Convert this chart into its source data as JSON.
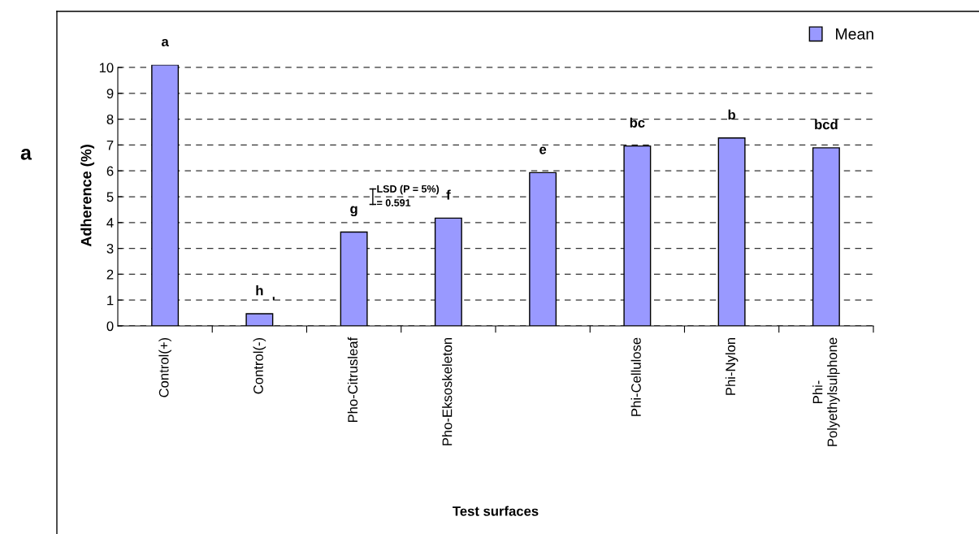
{
  "chart_data": {
    "type": "bar",
    "xlabel": "Test surfaces",
    "ylabel": "Adherence (%)",
    "categories": [
      "Control(+)",
      "Control(-)",
      "Pho-Citrusleaf",
      "Pho-Eksoskeleton",
      null,
      "Phi-Cellulose",
      "Phi-Nylon",
      "Phi-\nPolyethylsulphone"
    ],
    "series": [
      {
        "name": "Mean",
        "color": "#9999ff",
        "values": [
          10.1,
          0.47,
          3.63,
          4.17,
          5.93,
          6.96,
          7.27,
          6.89
        ],
        "value_labels": [
          "a",
          "h",
          "g",
          "f",
          "e",
          "bc",
          "b",
          "bcd"
        ]
      }
    ],
    "ylim": [
      0,
      10.1
    ],
    "yticks": [
      0,
      1,
      2,
      3,
      4,
      5,
      6,
      7,
      8,
      9,
      10
    ],
    "grid": "y",
    "legend": "top right",
    "annotations": [
      "a",
      "LSD (P = 5%)\n= 0.591",
      "ʹ"
    ]
  }
}
